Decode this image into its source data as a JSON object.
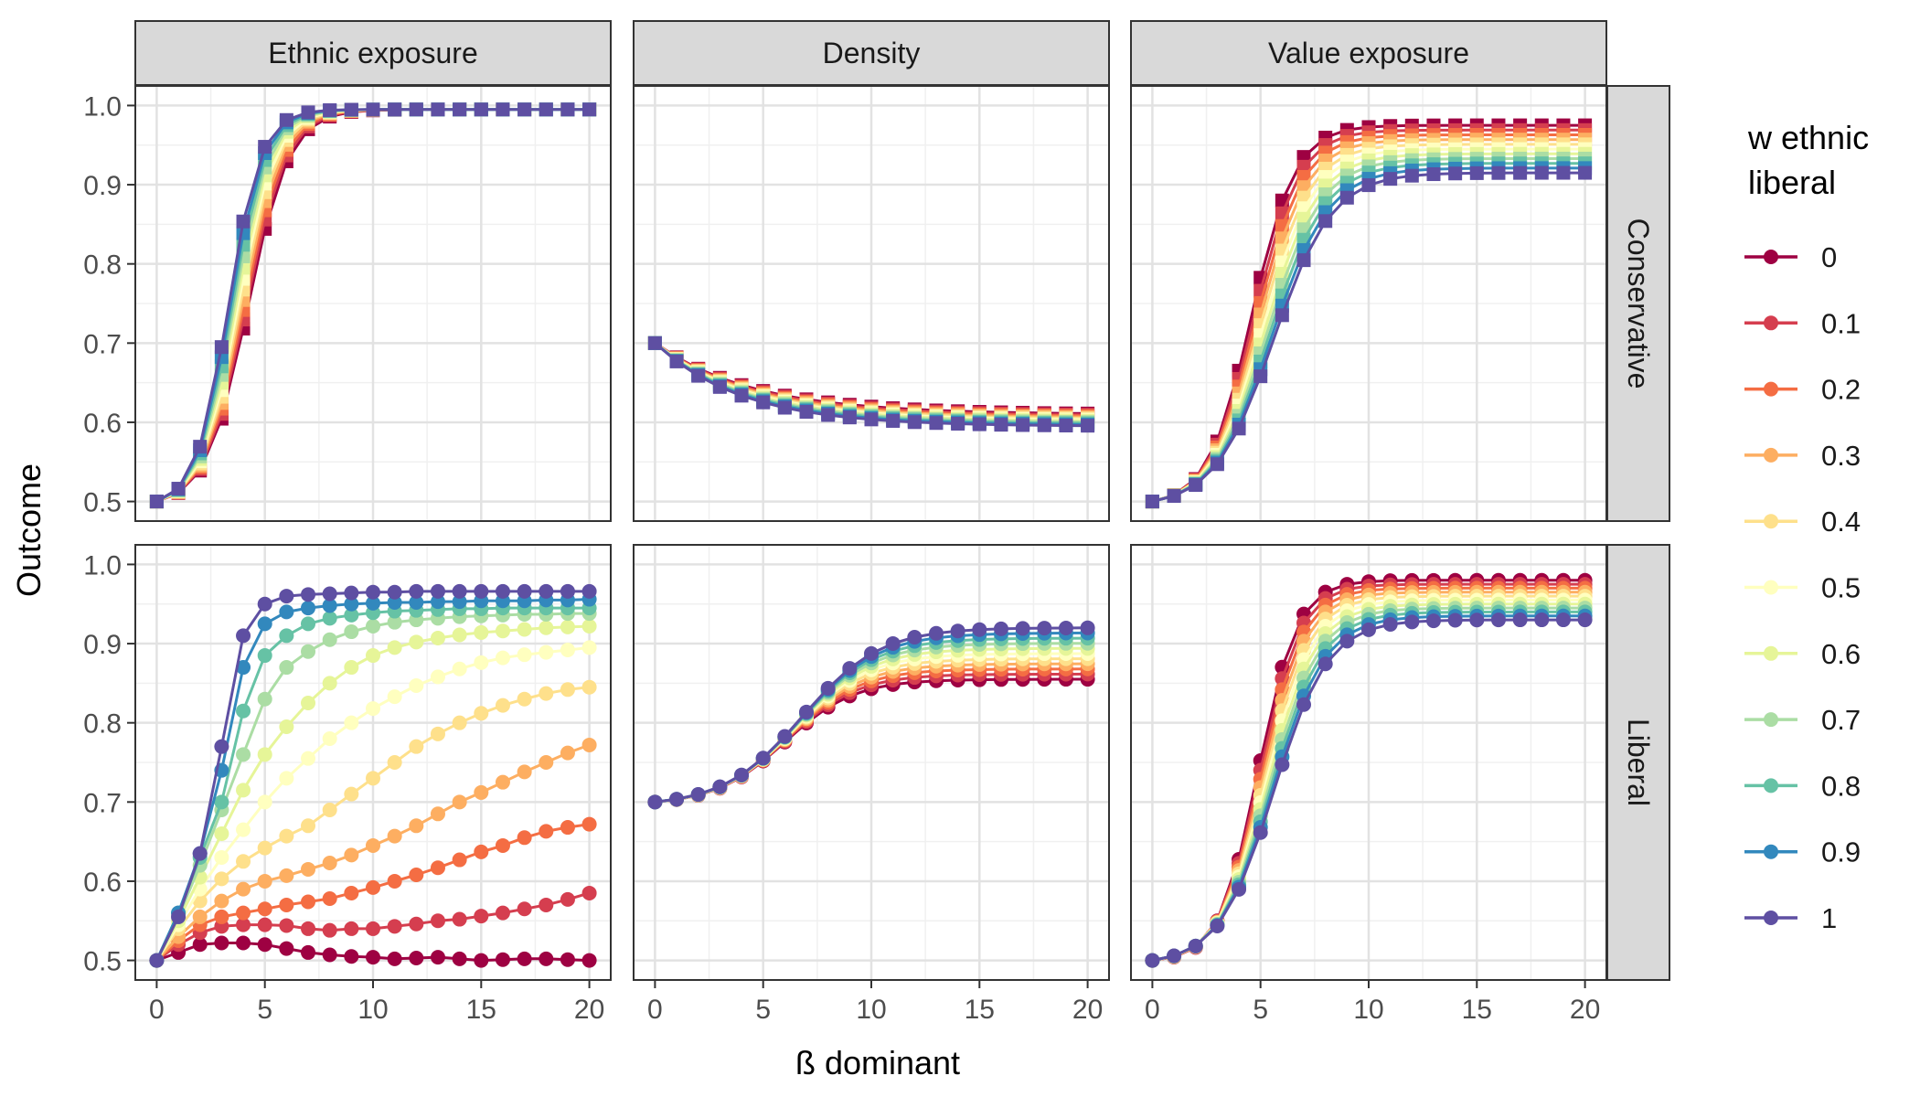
{
  "chart_data": {
    "type": "line",
    "facet_columns": [
      "Ethnic exposure",
      "Density",
      "Value exposure"
    ],
    "facet_rows": [
      "Conservative",
      "Liberal"
    ],
    "xlabel": "ß dominant",
    "ylabel": "Outcome",
    "xlim": [
      0,
      20
    ],
    "ylim": [
      0.5,
      1.0
    ],
    "x_ticks": [
      "0",
      "5",
      "10",
      "15",
      "20"
    ],
    "y_ticks": [
      "0.5",
      "0.6",
      "0.7",
      "0.8",
      "0.9",
      "1.0"
    ],
    "legend": {
      "title": "w ethnic\nliberal",
      "title_lines": [
        "w ethnic",
        "liberal"
      ],
      "position": "right",
      "entries": [
        "0",
        "0.1",
        "0.2",
        "0.3",
        "0.4",
        "0.5",
        "0.6",
        "0.7",
        "0.8",
        "0.9",
        "1"
      ]
    },
    "weights": [
      0,
      0.1,
      0.2,
      0.3,
      0.4,
      0.5,
      0.6,
      0.7,
      0.8,
      0.9,
      1
    ],
    "colors": [
      "#9E0142",
      "#D53E4F",
      "#F46D43",
      "#FDAE61",
      "#FEE08B",
      "#FFFFBF",
      "#E6F598",
      "#ABDDA4",
      "#66C2A5",
      "#3288BD",
      "#5E4FA2"
    ],
    "marker_by_row": {
      "Conservative": "square",
      "Liberal": "circle"
    },
    "x": [
      0,
      1,
      2,
      3,
      4,
      5,
      6,
      7,
      8,
      9,
      10,
      11,
      12,
      13,
      14,
      15,
      16,
      17,
      18,
      19,
      20
    ],
    "grid": true,
    "panel_models": {
      "Conservative|Ethnic exposure": {
        "kind": "logistic",
        "start": 0.5,
        "end0": 0.995,
        "end1": 0.995,
        "mid0": 4.2,
        "mid1": 3.3,
        "s0": 0.95,
        "s1": 0.75
      },
      "Conservative|Density": {
        "kind": "exp",
        "start": 0.7,
        "end0": 0.61,
        "end1": 0.595,
        "tau0": 4.5,
        "tau1": 4.0
      },
      "Conservative|Value exposure": {
        "kind": "logistic",
        "start": 0.5,
        "end0": 0.975,
        "end1": 0.915,
        "mid0": 4.6,
        "mid1": 5.6,
        "s0": 1.0,
        "s1": 1.35
      },
      "Liberal|Density": {
        "kind": "logistic",
        "start": 0.7,
        "end0": 0.855,
        "end1": 0.92,
        "mid0": 6.0,
        "mid1": 6.8,
        "s0": 1.6,
        "s1": 1.8
      },
      "Liberal|Value exposure": {
        "kind": "logistic",
        "start": 0.5,
        "end0": 0.98,
        "end1": 0.93,
        "mid0": 4.9,
        "mid1": 5.6,
        "s0": 0.9,
        "s1": 1.25
      }
    },
    "liberal_ethnic_exposure_series": [
      {
        "name": "0",
        "values": [
          0.5,
          0.51,
          0.52,
          0.522,
          0.522,
          0.52,
          0.515,
          0.51,
          0.507,
          0.505,
          0.504,
          0.502,
          0.503,
          0.504,
          0.502,
          0.5,
          0.501,
          0.502,
          0.502,
          0.501,
          0.5
        ]
      },
      {
        "name": "0.1",
        "values": [
          0.5,
          0.52,
          0.535,
          0.543,
          0.545,
          0.545,
          0.544,
          0.54,
          0.538,
          0.54,
          0.54,
          0.543,
          0.546,
          0.55,
          0.552,
          0.556,
          0.56,
          0.565,
          0.57,
          0.577,
          0.585
        ]
      },
      {
        "name": "0.2",
        "values": [
          0.5,
          0.525,
          0.545,
          0.555,
          0.56,
          0.565,
          0.57,
          0.574,
          0.578,
          0.585,
          0.592,
          0.6,
          0.608,
          0.617,
          0.627,
          0.637,
          0.645,
          0.655,
          0.663,
          0.668,
          0.672
        ]
      },
      {
        "name": "0.3",
        "values": [
          0.5,
          0.53,
          0.555,
          0.575,
          0.59,
          0.6,
          0.607,
          0.615,
          0.623,
          0.633,
          0.645,
          0.657,
          0.67,
          0.685,
          0.7,
          0.712,
          0.725,
          0.738,
          0.75,
          0.762,
          0.772
        ]
      },
      {
        "name": "0.4",
        "values": [
          0.5,
          0.54,
          0.575,
          0.603,
          0.625,
          0.642,
          0.657,
          0.67,
          0.69,
          0.71,
          0.73,
          0.75,
          0.77,
          0.786,
          0.8,
          0.812,
          0.822,
          0.83,
          0.837,
          0.842,
          0.845
        ]
      },
      {
        "name": "0.5",
        "values": [
          0.5,
          0.545,
          0.59,
          0.63,
          0.665,
          0.7,
          0.73,
          0.755,
          0.78,
          0.8,
          0.818,
          0.833,
          0.847,
          0.858,
          0.868,
          0.876,
          0.882,
          0.886,
          0.889,
          0.892,
          0.895
        ]
      },
      {
        "name": "0.6",
        "values": [
          0.5,
          0.55,
          0.605,
          0.66,
          0.715,
          0.76,
          0.795,
          0.825,
          0.85,
          0.87,
          0.885,
          0.895,
          0.902,
          0.907,
          0.911,
          0.914,
          0.916,
          0.918,
          0.92,
          0.921,
          0.922
        ]
      },
      {
        "name": "0.7",
        "values": [
          0.5,
          0.555,
          0.62,
          0.69,
          0.76,
          0.83,
          0.87,
          0.89,
          0.905,
          0.915,
          0.922,
          0.927,
          0.93,
          0.932,
          0.934,
          0.935,
          0.936,
          0.937,
          0.937,
          0.938,
          0.938
        ]
      },
      {
        "name": "0.8",
        "values": [
          0.5,
          0.56,
          0.63,
          0.7,
          0.815,
          0.885,
          0.91,
          0.925,
          0.932,
          0.936,
          0.939,
          0.941,
          0.942,
          0.943,
          0.944,
          0.944,
          0.945,
          0.945,
          0.945,
          0.945,
          0.945
        ]
      },
      {
        "name": "0.9",
        "values": [
          0.5,
          0.56,
          0.635,
          0.74,
          0.87,
          0.925,
          0.94,
          0.945,
          0.948,
          0.95,
          0.951,
          0.952,
          0.952,
          0.953,
          0.953,
          0.954,
          0.954,
          0.954,
          0.955,
          0.955,
          0.956
        ]
      },
      {
        "name": "1",
        "values": [
          0.5,
          0.555,
          0.635,
          0.77,
          0.91,
          0.95,
          0.96,
          0.962,
          0.963,
          0.964,
          0.965,
          0.965,
          0.966,
          0.966,
          0.966,
          0.966,
          0.966,
          0.966,
          0.966,
          0.966,
          0.966
        ]
      }
    ]
  }
}
